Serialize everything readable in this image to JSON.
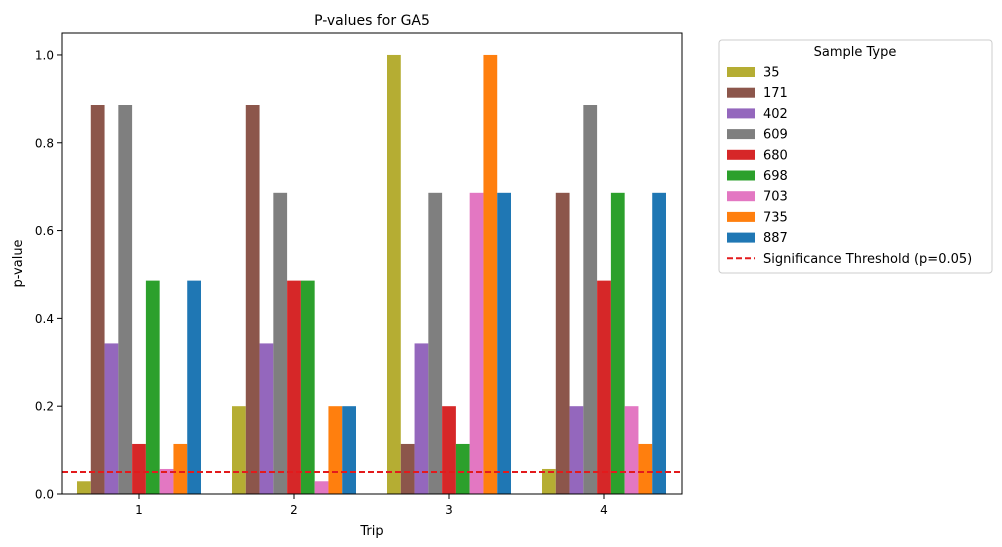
{
  "chart_data": {
    "type": "bar",
    "title": "P-values for GA5",
    "xlabel": "Trip",
    "ylabel": "p-value",
    "ylim": [
      0,
      1.05
    ],
    "yticks": [
      "0.0",
      "0.2",
      "0.4",
      "0.6",
      "0.8",
      "1.0"
    ],
    "categories": [
      "1",
      "2",
      "3",
      "4"
    ],
    "legend": {
      "title": "Sample Type",
      "placement": "outside-right-top"
    },
    "series": [
      {
        "name": "35",
        "color": "#b5ad33",
        "values": [
          0.029,
          0.2,
          1.0,
          0.057
        ]
      },
      {
        "name": "171",
        "color": "#8c564b",
        "values": [
          0.886,
          0.886,
          0.114,
          0.686
        ]
      },
      {
        "name": "402",
        "color": "#9467bd",
        "values": [
          0.343,
          0.343,
          0.343,
          0.2
        ]
      },
      {
        "name": "609",
        "color": "#7f7f7f",
        "values": [
          0.886,
          0.686,
          0.686,
          0.886
        ]
      },
      {
        "name": "680",
        "color": "#d62728",
        "values": [
          0.114,
          0.486,
          0.2,
          0.486
        ]
      },
      {
        "name": "698",
        "color": "#2ca02c",
        "values": [
          0.486,
          0.486,
          0.114,
          0.686
        ]
      },
      {
        "name": "703",
        "color": "#e377c2",
        "values": [
          0.057,
          0.029,
          0.686,
          0.2
        ]
      },
      {
        "name": "735",
        "color": "#ff7f0e",
        "values": [
          0.114,
          0.2,
          1.0,
          0.114
        ]
      },
      {
        "name": "887",
        "color": "#1f77b4",
        "values": [
          0.486,
          0.2,
          0.686,
          0.686
        ]
      }
    ],
    "reference_line": {
      "label": "Significance Threshold (p=0.05)",
      "value": 0.05,
      "color": "#e31a1c",
      "style": "dashed"
    }
  }
}
